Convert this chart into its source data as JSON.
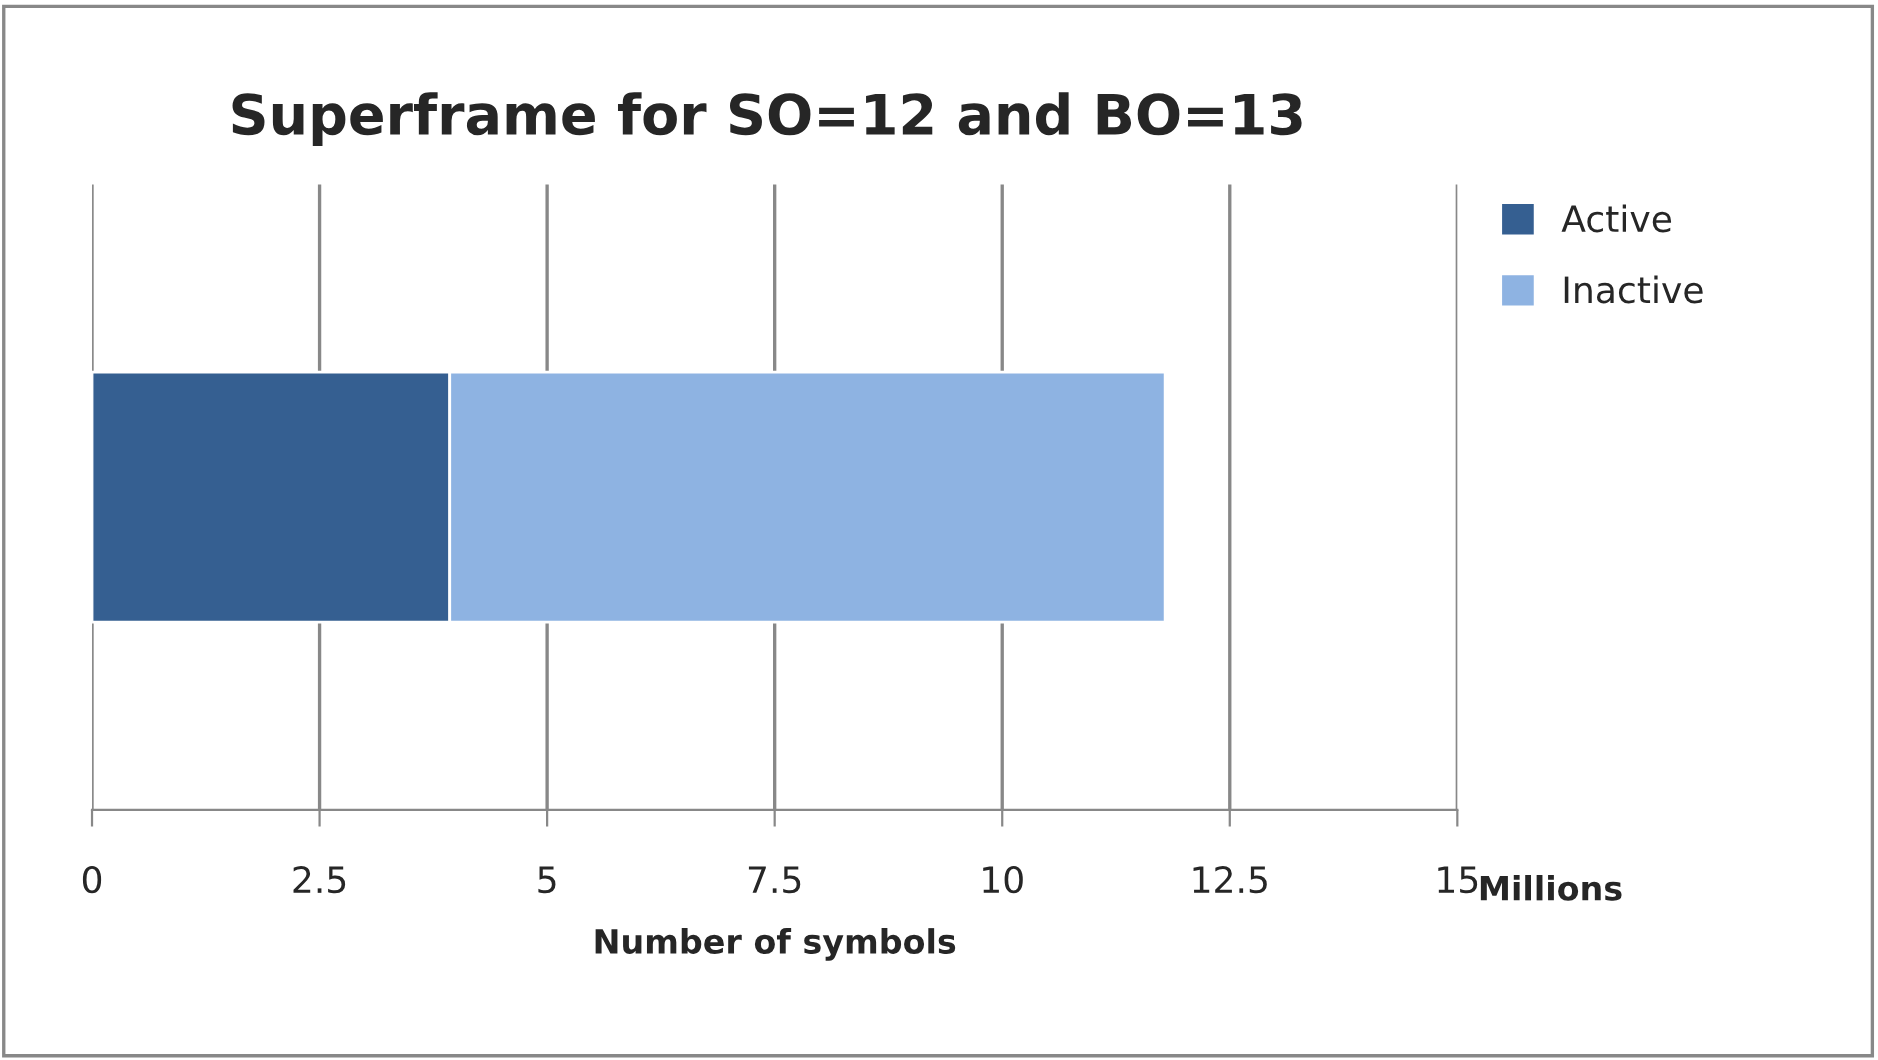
{
  "chart_data": {
    "type": "bar",
    "orientation": "horizontal",
    "stacked": true,
    "title": "Superframe for SO=12 and BO=13",
    "xlabel": "Number of symbols",
    "annotations": [
      "Millions"
    ],
    "categories": [
      null
    ],
    "series": [
      {
        "name": "Active",
        "color": "#355f91",
        "values": [
          3.93
        ]
      },
      {
        "name": "Inactive",
        "color": "#8eb3e2",
        "values": [
          7.86
        ]
      }
    ],
    "xlim": [
      0,
      15
    ],
    "xticks": [
      0,
      2.5,
      5,
      7.5,
      10,
      12.5,
      15
    ],
    "grid": "x",
    "legend": "top right"
  }
}
